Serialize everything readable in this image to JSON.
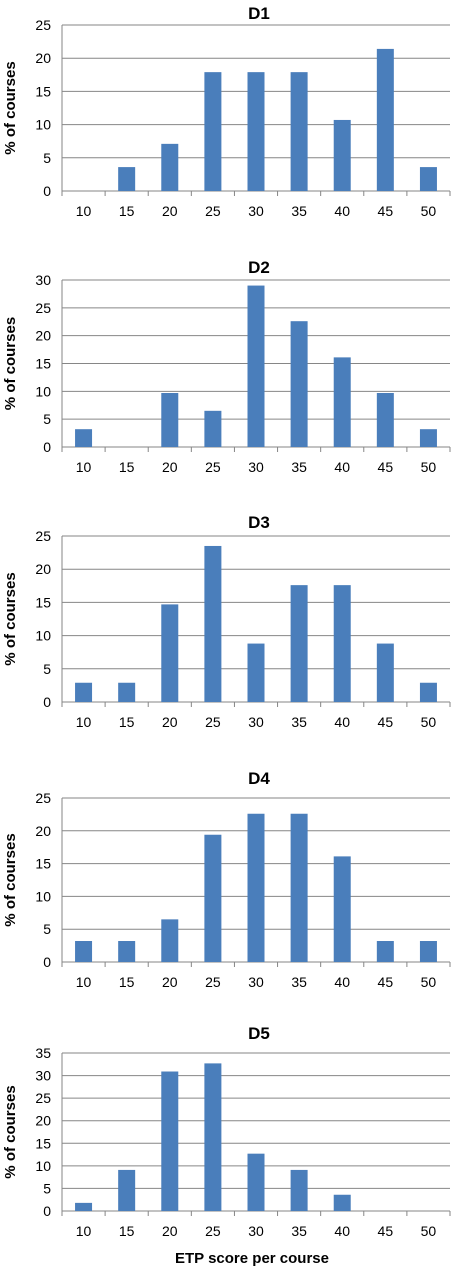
{
  "chart_data": [
    {
      "type": "bar",
      "title": "D1",
      "ylabel": "% of courses",
      "xlabel": "",
      "categories": [
        "10",
        "15",
        "20",
        "25",
        "30",
        "35",
        "40",
        "45",
        "50"
      ],
      "values": [
        0,
        3.6,
        7.1,
        17.9,
        17.9,
        17.9,
        10.7,
        21.4,
        3.6
      ],
      "ylim": [
        0,
        25
      ],
      "yticks": [
        "0",
        "5",
        "10",
        "15",
        "20",
        "25"
      ],
      "bar_color": "#4a7ebb",
      "grid": true
    },
    {
      "type": "bar",
      "title": "D2",
      "ylabel": "% of courses",
      "xlabel": "",
      "categories": [
        "10",
        "15",
        "20",
        "25",
        "30",
        "35",
        "40",
        "45",
        "50"
      ],
      "values": [
        3.2,
        0,
        9.7,
        6.5,
        29.0,
        22.6,
        16.1,
        9.7,
        3.2
      ],
      "ylim": [
        0,
        30
      ],
      "yticks": [
        "0",
        "5",
        "10",
        "15",
        "20",
        "25",
        "30"
      ],
      "bar_color": "#4a7ebb",
      "grid": true
    },
    {
      "type": "bar",
      "title": "D3",
      "ylabel": "% of courses",
      "xlabel": "",
      "categories": [
        "10",
        "15",
        "20",
        "25",
        "30",
        "35",
        "40",
        "45",
        "50"
      ],
      "values": [
        2.9,
        2.9,
        14.7,
        23.5,
        8.8,
        17.6,
        17.6,
        8.8,
        2.9
      ],
      "ylim": [
        0,
        25
      ],
      "yticks": [
        "0",
        "5",
        "10",
        "15",
        "20",
        "25"
      ],
      "bar_color": "#4a7ebb",
      "grid": true
    },
    {
      "type": "bar",
      "title": "D4",
      "ylabel": "% of courses",
      "xlabel": "",
      "categories": [
        "10",
        "15",
        "20",
        "25",
        "30",
        "35",
        "40",
        "45",
        "50"
      ],
      "values": [
        3.2,
        3.2,
        6.5,
        19.4,
        22.6,
        22.6,
        16.1,
        3.2,
        3.2
      ],
      "ylim": [
        0,
        25
      ],
      "yticks": [
        "0",
        "5",
        "10",
        "15",
        "20",
        "25"
      ],
      "bar_color": "#4a7ebb",
      "grid": true
    },
    {
      "type": "bar",
      "title": "D5",
      "ylabel": "% of courses",
      "xlabel": "ETP score per course",
      "categories": [
        "10",
        "15",
        "20",
        "25",
        "30",
        "35",
        "40",
        "45",
        "50"
      ],
      "values": [
        1.8,
        9.1,
        30.9,
        32.7,
        12.7,
        9.1,
        3.6,
        0,
        0
      ],
      "ylim": [
        0,
        35
      ],
      "yticks": [
        "0",
        "5",
        "10",
        "15",
        "20",
        "25",
        "30",
        "35"
      ],
      "bar_color": "#4a7ebb",
      "grid": true
    }
  ]
}
